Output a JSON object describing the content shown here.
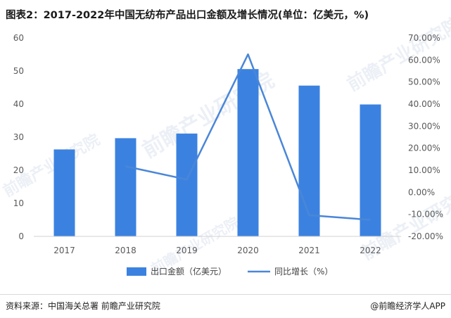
{
  "title": "图表2：2017-2022年中国无纺布产品出口金额及增长情况(单位：亿美元，%)",
  "footer": {
    "source": "资料来源：中国海关总署 前瞻产业研究院",
    "brand": "@前瞻经济学人APP"
  },
  "watermark": "前瞻产业研究院",
  "colors": {
    "bar": "#3b82e0",
    "line": "#4a86d8"
  },
  "chart_data": {
    "type": "bar",
    "categories": [
      "2017",
      "2018",
      "2019",
      "2020",
      "2021",
      "2022"
    ],
    "series": [
      {
        "name": "出口金额（亿美元）",
        "kind": "bar",
        "axis": "left",
        "values": [
          26.3,
          29.7,
          31.1,
          50.6,
          45.6,
          39.9
        ]
      },
      {
        "name": "同比增长（%）",
        "kind": "line",
        "axis": "right",
        "values": [
          null,
          11.8,
          5.8,
          62.6,
          -10.4,
          -12.5
        ]
      }
    ],
    "y_left": {
      "min": 0,
      "max": 60,
      "ticks": [
        "0",
        "10",
        "20",
        "30",
        "40",
        "50",
        "60"
      ]
    },
    "y_right": {
      "min": -20,
      "max": 70,
      "ticks": [
        "-20.00%",
        "-10.00%",
        "0.00%",
        "10.00%",
        "20.00%",
        "30.00%",
        "40.00%",
        "50.00%",
        "60.00%",
        "70.00%"
      ]
    },
    "legend": {
      "position": "bottom"
    },
    "grid": false
  }
}
